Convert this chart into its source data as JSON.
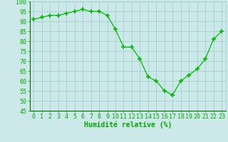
{
  "x": [
    0,
    1,
    2,
    3,
    4,
    5,
    6,
    7,
    8,
    9,
    10,
    11,
    12,
    13,
    14,
    15,
    16,
    17,
    18,
    19,
    20,
    21,
    22,
    23
  ],
  "y": [
    91,
    92,
    93,
    93,
    94,
    95,
    96,
    95,
    95,
    93,
    86,
    77,
    77,
    71,
    62,
    60,
    55,
    53,
    60,
    63,
    66,
    71,
    81,
    85
  ],
  "line_color": "#00bb00",
  "marker_color": "#00bb00",
  "bg_color": "#cce8e8",
  "grid_color": "#99cccc",
  "xlabel": "Humidité relative (%)",
  "ylim": [
    45,
    100
  ],
  "xlim": [
    -0.5,
    23.5
  ],
  "yticks": [
    45,
    50,
    55,
    60,
    65,
    70,
    75,
    80,
    85,
    90,
    95,
    100
  ],
  "xticks": [
    0,
    1,
    2,
    3,
    4,
    5,
    6,
    7,
    8,
    9,
    10,
    11,
    12,
    13,
    14,
    15,
    16,
    17,
    18,
    19,
    20,
    21,
    22,
    23
  ],
  "xlabel_fontsize": 7,
  "tick_fontsize": 6,
  "tick_color": "#00aa00",
  "xlabel_color": "#00aa00",
  "spine_color": "#007700"
}
